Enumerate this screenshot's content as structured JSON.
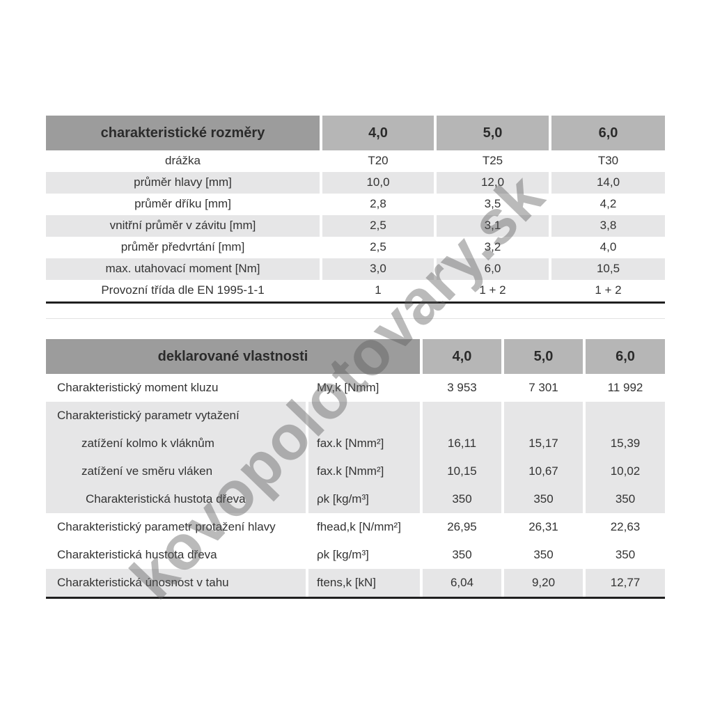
{
  "watermark": {
    "text": "kovopolotovary.sk"
  },
  "dimensions_table": {
    "title": "charakteristické rozměry",
    "size_columns": [
      "4,0",
      "5,0",
      "6,0"
    ],
    "rows": [
      {
        "label": "drážka",
        "values": [
          "T20",
          "T25",
          "T30"
        ]
      },
      {
        "label": "průměr hlavy [mm]",
        "values": [
          "10,0",
          "12,0",
          "14,0"
        ]
      },
      {
        "label": "průměr dříku [mm]",
        "values": [
          "2,8",
          "3,5",
          "4,2"
        ]
      },
      {
        "label": "vnitřní průměr v závitu [mm]",
        "values": [
          "2,5",
          "3,1",
          "3,8"
        ]
      },
      {
        "label": "průměr předvrtání [mm]",
        "values": [
          "2,5",
          "3,2",
          "4,0"
        ]
      },
      {
        "label": "max. utahovací moment [Nm]",
        "values": [
          "3,0",
          "6,0",
          "10,5"
        ]
      },
      {
        "label": "Provozní třída dle EN 1995-1-1",
        "values": [
          "1",
          "1 + 2",
          "1 + 2"
        ]
      }
    ]
  },
  "properties_table": {
    "title": "deklarované vlastnosti",
    "size_columns": [
      "4,0",
      "5,0",
      "6,0"
    ],
    "rows": [
      {
        "label": "Charakteristický moment kluzu",
        "symbol": "My,k [Nmm]",
        "values": [
          "3 953",
          "7 301",
          "11 992"
        ]
      },
      {
        "label": "Charakteristický parametr vytažení",
        "symbol": "",
        "values": [
          "",
          "",
          ""
        ]
      },
      {
        "label": "zatížení kolmo k vláknům",
        "symbol": "fax.k [Nmm²]",
        "values": [
          "16,11",
          "15,17",
          "15,39"
        ]
      },
      {
        "label": "zatížení ve směru vláken",
        "symbol": "fax.k [Nmm²]",
        "values": [
          "10,15",
          "10,67",
          "10,02"
        ]
      },
      {
        "label": "Charakteristická hustota dřeva",
        "symbol": "ρk [kg/m³]",
        "values": [
          "350",
          "350",
          "350"
        ]
      },
      {
        "label": "Charakteristický parametr protažení hlavy",
        "symbol": "fhead,k [N/mm²]",
        "values": [
          "26,95",
          "26,31",
          "22,63"
        ]
      },
      {
        "label": "Charakteristická hustota dřeva",
        "symbol": "ρk [kg/m³]",
        "values": [
          "350",
          "350",
          "350"
        ]
      },
      {
        "label": "Charakteristická únosnost v tahu",
        "symbol": "ftens,k [kN]",
        "values": [
          "6,04",
          "9,20",
          "12,77"
        ]
      }
    ]
  },
  "colors": {
    "header_dark": "#9c9c9c",
    "header_light": "#b6b6b6",
    "row_shaded": "#e6e6e7",
    "text": "#333333",
    "bottom_rule": "#1f1f1f"
  }
}
